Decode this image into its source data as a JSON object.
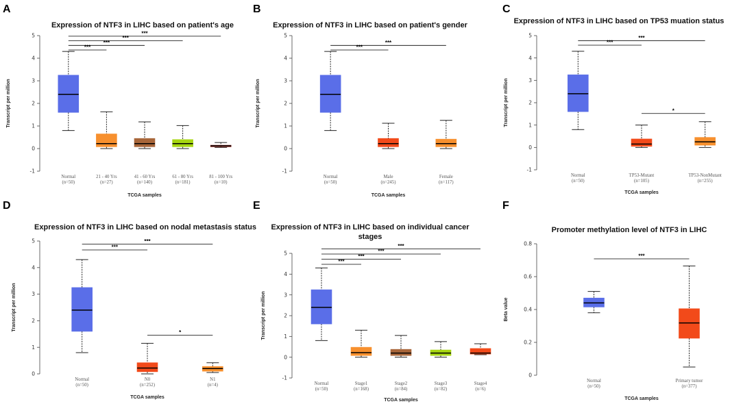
{
  "chart_data": [
    {
      "letter": "A",
      "type": "box",
      "title": "Expression of NTF3 in LIHC based on patient's age",
      "xlabel": "TCGA samples",
      "ylabel": "Transcript per million",
      "ylim": [
        -1,
        5
      ],
      "yticks": [
        "-1",
        "0",
        "1",
        "2",
        "3",
        "4",
        "5"
      ],
      "categories": [
        {
          "name": "Normal",
          "n": "(n=50)",
          "color": "#5a6ee8",
          "min": 0.8,
          "q1": 1.6,
          "median": 2.4,
          "q3": 3.25,
          "max": 4.3
        },
        {
          "name": "21 - 40 Yrs",
          "n": "(n=27)",
          "color": "#f7902e",
          "min": 0.0,
          "q1": 0.08,
          "median": 0.22,
          "q3": 0.65,
          "max": 1.63
        },
        {
          "name": "41 - 60 Yrs",
          "n": "(n=140)",
          "color": "#a8663a",
          "min": 0.0,
          "q1": 0.08,
          "median": 0.22,
          "q3": 0.45,
          "max": 1.18
        },
        {
          "name": "61 - 80 Yrs",
          "n": "(n=181)",
          "color": "#a6d611",
          "min": 0.0,
          "q1": 0.08,
          "median": 0.22,
          "q3": 0.4,
          "max": 1.02
        },
        {
          "name": "81 - 100 Yrs",
          "n": "(n=10)",
          "color": "#8b1a10",
          "min": 0.05,
          "q1": 0.08,
          "median": 0.12,
          "q3": 0.15,
          "max": 0.27
        }
      ],
      "significance": [
        {
          "from": 0,
          "to": 1,
          "label": "***"
        },
        {
          "from": 0,
          "to": 2,
          "label": "***"
        },
        {
          "from": 0,
          "to": 3,
          "label": "***"
        },
        {
          "from": 0,
          "to": 4,
          "label": "***"
        }
      ]
    },
    {
      "letter": "B",
      "type": "box",
      "title": "Expression of NTF3 in LIHC based on patient's gender",
      "xlabel": "TCGA samples",
      "ylabel": "Transcript per million",
      "ylim": [
        -1,
        5
      ],
      "yticks": [
        "-1",
        "0",
        "1",
        "2",
        "3",
        "4",
        "5"
      ],
      "categories": [
        {
          "name": "Normal",
          "n": "(n=50)",
          "color": "#5a6ee8",
          "min": 0.8,
          "q1": 1.6,
          "median": 2.4,
          "q3": 3.25,
          "max": 4.3
        },
        {
          "name": "Male",
          "n": "(n=245)",
          "color": "#f24a1a",
          "min": 0.0,
          "q1": 0.08,
          "median": 0.22,
          "q3": 0.45,
          "max": 1.12
        },
        {
          "name": "Female",
          "n": "(n=117)",
          "color": "#f7902e",
          "min": 0.0,
          "q1": 0.08,
          "median": 0.22,
          "q3": 0.42,
          "max": 1.25
        }
      ],
      "significance": [
        {
          "from": 0,
          "to": 1,
          "label": "***"
        },
        {
          "from": 0,
          "to": 2,
          "label": "***"
        }
      ]
    },
    {
      "letter": "C",
      "type": "box",
      "title": "Expression of NTF3 in LIHC based on TP53 muation status",
      "xlabel": "TCGA samples",
      "ylabel": "Transcript per million",
      "ylim": [
        -1,
        5
      ],
      "yticks": [
        "-1",
        "0",
        "1",
        "2",
        "3",
        "4",
        "5"
      ],
      "categories": [
        {
          "name": "Normal",
          "n": "(n=50)",
          "color": "#5a6ee8",
          "min": 0.8,
          "q1": 1.6,
          "median": 2.4,
          "q3": 3.25,
          "max": 4.3
        },
        {
          "name": "TP53-Mutant",
          "n": "(n=105)",
          "color": "#f24a1a",
          "min": 0.0,
          "q1": 0.05,
          "median": 0.15,
          "q3": 0.38,
          "max": 1.0
        },
        {
          "name": "TP53-NonMutant",
          "n": "(n=255)",
          "color": "#f7902e",
          "min": 0.0,
          "q1": 0.1,
          "median": 0.25,
          "q3": 0.45,
          "max": 1.15
        }
      ],
      "significance": [
        {
          "from": 0,
          "to": 1,
          "label": "***"
        },
        {
          "from": 0,
          "to": 2,
          "label": "***"
        },
        {
          "from": 1,
          "to": 2,
          "label": "*"
        }
      ]
    },
    {
      "letter": "D",
      "type": "box",
      "title": "Expression of NTF3 in LIHC based on nodal metastasis status",
      "xlabel": "TCGA samples",
      "ylabel": "Transcript per million",
      "ylim": [
        0,
        5
      ],
      "yticks": [
        "0",
        "1",
        "2",
        "3",
        "4",
        "5"
      ],
      "categories": [
        {
          "name": "Normal",
          "n": "(n=50)",
          "color": "#5a6ee8",
          "min": 0.8,
          "q1": 1.6,
          "median": 2.4,
          "q3": 3.25,
          "max": 4.3
        },
        {
          "name": "N0",
          "n": "(n=252)",
          "color": "#f24a1a",
          "min": 0.0,
          "q1": 0.08,
          "median": 0.22,
          "q3": 0.42,
          "max": 1.15
        },
        {
          "name": "N1",
          "n": "(n=4)",
          "color": "#f7902e",
          "min": 0.05,
          "q1": 0.1,
          "median": 0.2,
          "q3": 0.28,
          "max": 0.42
        }
      ],
      "significance": [
        {
          "from": 0,
          "to": 1,
          "label": "***"
        },
        {
          "from": 0,
          "to": 2,
          "label": "***"
        },
        {
          "from": 1,
          "to": 2,
          "label": "*"
        }
      ]
    },
    {
      "letter": "E",
      "type": "box",
      "title": "Expression of NTF3 in LIHC based on individual cancer stages",
      "title_lines": [
        "Expression of NTF3 in LIHC based on individual cancer",
        "stages"
      ],
      "xlabel": "TCGA samples",
      "ylabel": "Transcript per million",
      "ylim": [
        -1,
        5
      ],
      "yticks": [
        "-1",
        "0",
        "1",
        "2",
        "3",
        "4",
        "5"
      ],
      "categories": [
        {
          "name": "Normal",
          "n": "(n=50)",
          "color": "#5a6ee8",
          "min": 0.8,
          "q1": 1.6,
          "median": 2.4,
          "q3": 3.25,
          "max": 4.3
        },
        {
          "name": "Stage1",
          "n": "(n=168)",
          "color": "#f7902e",
          "min": 0.0,
          "q1": 0.08,
          "median": 0.22,
          "q3": 0.48,
          "max": 1.3
        },
        {
          "name": "Stage2",
          "n": "(n=84)",
          "color": "#a8663a",
          "min": 0.0,
          "q1": 0.08,
          "median": 0.2,
          "q3": 0.38,
          "max": 1.05
        },
        {
          "name": "Stage3",
          "n": "(n=82)",
          "color": "#a6d611",
          "min": 0.0,
          "q1": 0.08,
          "median": 0.2,
          "q3": 0.35,
          "max": 0.75
        },
        {
          "name": "Stage4",
          "n": "(n=6)",
          "color": "#f24a1a",
          "min": 0.12,
          "q1": 0.15,
          "median": 0.2,
          "q3": 0.42,
          "max": 0.65
        }
      ],
      "significance": [
        {
          "from": 0,
          "to": 1,
          "label": "***"
        },
        {
          "from": 0,
          "to": 2,
          "label": "***"
        },
        {
          "from": 0,
          "to": 3,
          "label": "***"
        },
        {
          "from": 0,
          "to": 4,
          "label": "***"
        }
      ]
    },
    {
      "letter": "F",
      "type": "box",
      "title": "Promoter methylation level of NTF3 in LIHC",
      "xlabel": "TCGA samples",
      "ylabel": "Beta value",
      "ylim": [
        0,
        0.8
      ],
      "yticks": [
        "0",
        "0.2",
        "0.4",
        "0.6",
        "0.8"
      ],
      "categories": [
        {
          "name": "Normal",
          "n": "(n=50)",
          "color": "#5a6ee8",
          "min": 0.38,
          "q1": 0.415,
          "median": 0.44,
          "q3": 0.47,
          "max": 0.51
        },
        {
          "name": "Primary tumor",
          "n": "(n=377)",
          "color": "#f24a1a",
          "min": 0.05,
          "q1": 0.225,
          "median": 0.318,
          "q3": 0.405,
          "max": 0.665
        }
      ],
      "significance": [
        {
          "from": 0,
          "to": 1,
          "label": "***"
        }
      ]
    }
  ]
}
